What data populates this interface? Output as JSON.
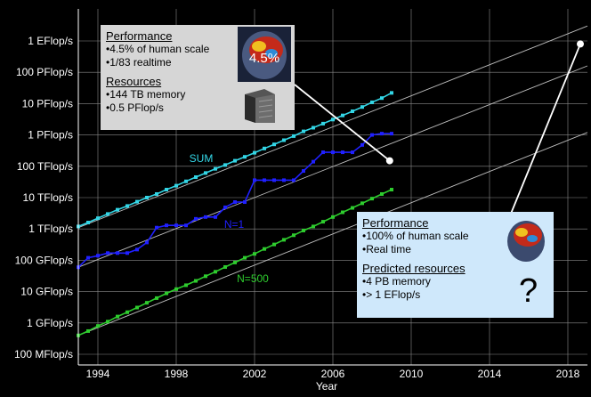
{
  "chart_data": {
    "type": "line",
    "xlabel": "Year",
    "ylabel": "",
    "xlim": [
      1993,
      2019
    ],
    "ylim_log10_flops": [
      11,
      18
    ],
    "x_ticks": [
      "1994",
      "1998",
      "2002",
      "2006",
      "2010",
      "2014",
      "2018"
    ],
    "y_ticks": [
      "1 EFlop/s",
      "100 PFlop/s",
      "10 PFlop/s",
      "1 PFlop/s",
      "100 TFlop/s",
      "10 TFlop/s",
      "1 TFlop/s",
      "100 GFlop/s",
      "10 GFlop/s",
      "1 GFlop/s",
      "100 MFlop/s"
    ],
    "y_tick_values_flops": [
      "1e18",
      "1e17",
      "1e16",
      "1e15",
      "1e14",
      "1e13",
      "1e12",
      "1e11",
      "1e10",
      "1e9",
      "1e8"
    ],
    "series": [
      {
        "name": "SUM",
        "color": "#33d6e6",
        "x": [
          1993.0,
          1993.5,
          1994.0,
          1994.5,
          1995.0,
          1995.5,
          1996.0,
          1996.5,
          1997.0,
          1997.5,
          1998.0,
          1998.5,
          1999.0,
          1999.5,
          2000.0,
          2000.5,
          2001.0,
          2001.5,
          2002.0,
          2002.5,
          2003.0,
          2003.5,
          2004.0,
          2004.5,
          2005.0,
          2005.5,
          2006.0,
          2006.5,
          2007.0,
          2007.5,
          2008.0,
          2008.5,
          2009.0
        ],
        "y": [
          "1.2e12",
          "1.6e12",
          "2.2e12",
          "3.0e12",
          "4.1e12",
          "5.4e12",
          "7.4e12",
          "1.0e13",
          "1.3e13",
          "1.8e13",
          "2.4e13",
          "3.3e13",
          "4.5e13",
          "6.1e13",
          "8.3e13",
          "1.1e14",
          "1.5e14",
          "2.0e14",
          "2.7e14",
          "3.7e14",
          "5.0e14",
          "6.8e14",
          "9.2e14",
          "1.3e15",
          "1.7e15",
          "2.3e15",
          "3.1e15",
          "4.2e15",
          "5.7e15",
          "7.8e15",
          "1.1e16",
          "1.5e16",
          "2.2e16"
        ]
      },
      {
        "name": "N=1",
        "color": "#2020ff",
        "x": [
          1993.0,
          1993.5,
          1994.0,
          1994.5,
          1995.0,
          1995.5,
          1996.0,
          1996.5,
          1997.0,
          1997.5,
          1998.0,
          1998.5,
          1999.0,
          1999.5,
          2000.0,
          2000.5,
          2001.0,
          2001.5,
          2002.0,
          2002.5,
          2003.0,
          2003.5,
          2004.0,
          2004.5,
          2005.0,
          2005.5,
          2006.0,
          2006.5,
          2007.0,
          2007.5,
          2008.0,
          2008.5,
          2009.0
        ],
        "y": [
          "6.0e10",
          "1.2e11",
          "1.4e11",
          "1.7e11",
          "1.7e11",
          "1.7e11",
          "2.2e11",
          "3.7e11",
          "1.1e12",
          "1.3e12",
          "1.3e12",
          "1.3e12",
          "2.1e12",
          "2.4e12",
          "2.4e12",
          "4.9e12",
          "7.2e12",
          "7.2e12",
          "3.6e13",
          "3.6e13",
          "3.6e13",
          "3.6e13",
          "3.6e13",
          "7.1e13",
          "1.4e14",
          "2.8e14",
          "2.8e14",
          "2.8e14",
          "2.8e14",
          "4.8e14",
          "1.0e15",
          "1.1e15",
          "1.1e15"
        ]
      },
      {
        "name": "N=500",
        "color": "#2ecc2e",
        "x": [
          1993.0,
          1993.5,
          1994.0,
          1994.5,
          1995.0,
          1995.5,
          1996.0,
          1996.5,
          1997.0,
          1997.5,
          1998.0,
          1998.5,
          1999.0,
          1999.5,
          2000.0,
          2000.5,
          2001.0,
          2001.5,
          2002.0,
          2002.5,
          2003.0,
          2003.5,
          2004.0,
          2004.5,
          2005.0,
          2005.5,
          2006.0,
          2006.5,
          2007.0,
          2007.5,
          2008.0,
          2008.5,
          2009.0
        ],
        "y": [
          "4.0e8",
          "5.5e8",
          "8.0e8",
          "1.1e9",
          "1.6e9",
          "2.2e9",
          "3.1e9",
          "4.4e9",
          "6.2e9",
          "8.8e9",
          "1.2e10",
          "1.6e10",
          "2.2e10",
          "3.1e10",
          "4.3e10",
          "6.1e10",
          "8.5e10",
          "1.2e11",
          "1.6e11",
          "2.3e11",
          "3.2e11",
          "4.5e11",
          "6.3e11",
          "8.9e11",
          "1.2e12",
          "1.7e12",
          "2.4e12",
          "3.4e12",
          "4.7e12",
          "6.6e12",
          "9.3e12",
          "1.3e13",
          "1.8e13"
        ]
      }
    ],
    "trend_lines": [
      {
        "x": [
          1993,
          2019
        ],
        "y": [
          "1.1e12",
          "3.0e18"
        ]
      },
      {
        "x": [
          1993,
          2019
        ],
        "y": [
          "6.0e10",
          "1.6e17"
        ]
      },
      {
        "x": [
          1993,
          2019
        ],
        "y": [
          "4.0e8",
          "1.2e15"
        ]
      }
    ],
    "colors": {
      "background": "#000000",
      "axis": "#ffffff",
      "grid": "#8a8a8a"
    }
  },
  "annotations": {
    "current": {
      "perf_title": "Performance",
      "perf_items": [
        "4.5% of human scale",
        "1/83 realtime"
      ],
      "brain_label": "4.5%",
      "res_title": "Resources",
      "res_items": [
        "144 TB memory",
        "0.5 PFlop/s"
      ],
      "pointer": {
        "x": 2008.9,
        "y": "1.5e14"
      },
      "icons": [
        "brain-icon",
        "supercomputer-icon"
      ]
    },
    "future": {
      "perf_title": "Performance",
      "perf_items": [
        "100% of human scale",
        "Real time"
      ],
      "res_title": "Predicted resources",
      "res_items": [
        "4 PB memory",
        "> 1 EFlop/s"
      ],
      "qmark": "?",
      "pointer": {
        "x": 2019,
        "y": "8.0e17"
      },
      "icons": [
        "brain-icon",
        "question-mark-icon"
      ]
    }
  }
}
